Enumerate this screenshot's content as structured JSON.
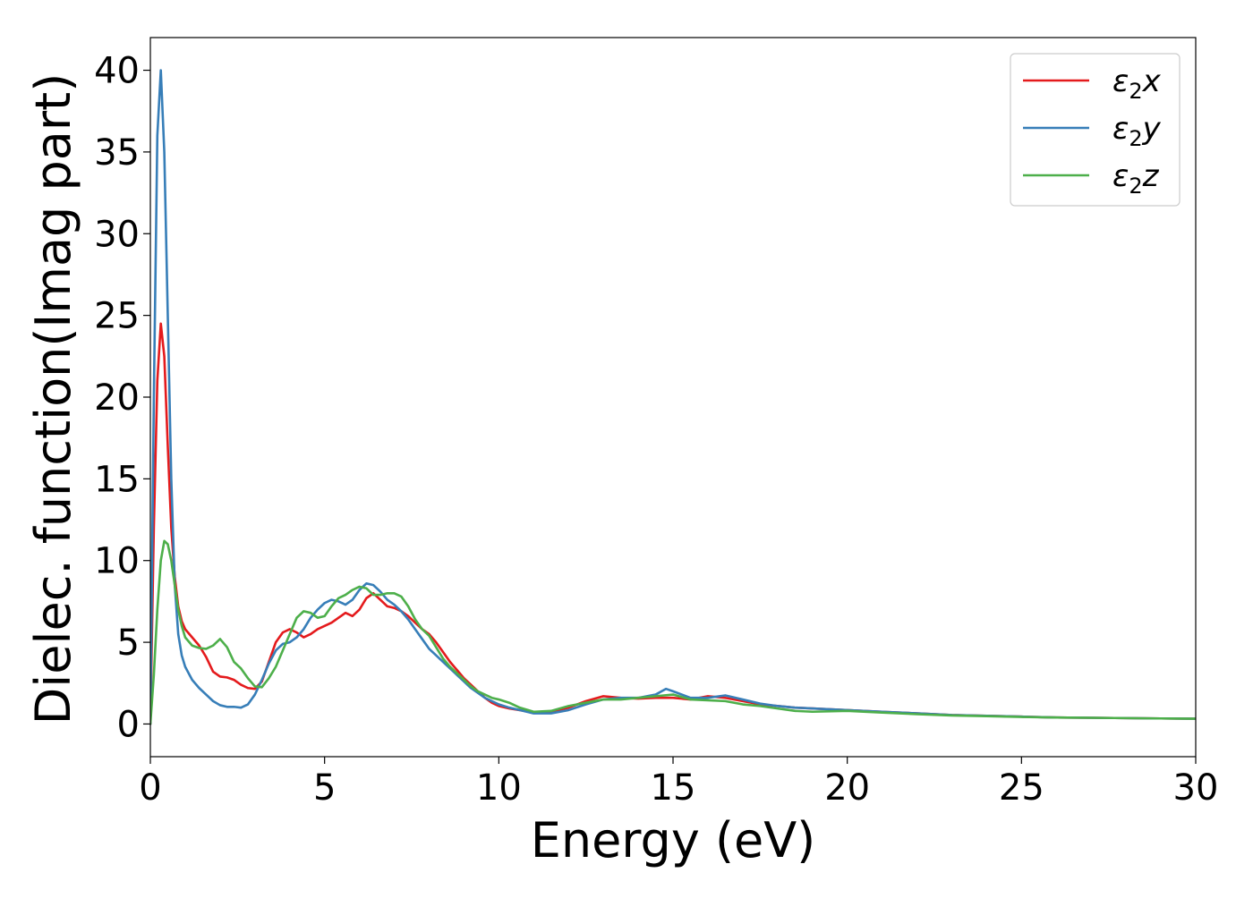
{
  "chart_data": {
    "type": "line",
    "title": "",
    "xlabel": "Energy (eV)",
    "ylabel": "Dielec. function(Imag part)",
    "xlim": [
      0,
      30
    ],
    "ylim": [
      -2,
      42
    ],
    "xticks": [
      0,
      5,
      10,
      15,
      20,
      25,
      30
    ],
    "yticks": [
      0,
      5,
      10,
      15,
      20,
      25,
      30,
      35,
      40
    ],
    "grid": false,
    "legend_position": "top-right",
    "series": [
      {
        "name": "ε2x",
        "legend_base": "ε",
        "legend_sub": "2",
        "legend_suffix": "x",
        "color": "#e41a1c",
        "points": [
          [
            0,
            0
          ],
          [
            0.1,
            12
          ],
          [
            0.2,
            21
          ],
          [
            0.3,
            24.5
          ],
          [
            0.4,
            22.5
          ],
          [
            0.5,
            17
          ],
          [
            0.6,
            12
          ],
          [
            0.7,
            9
          ],
          [
            0.8,
            7.2
          ],
          [
            0.9,
            6.3
          ],
          [
            1,
            5.8
          ],
          [
            1.2,
            5.3
          ],
          [
            1.4,
            4.8
          ],
          [
            1.6,
            4.1
          ],
          [
            1.8,
            3.2
          ],
          [
            2,
            2.9
          ],
          [
            2.2,
            2.85
          ],
          [
            2.4,
            2.7
          ],
          [
            2.6,
            2.4
          ],
          [
            2.8,
            2.2
          ],
          [
            3,
            2.15
          ],
          [
            3.2,
            2.6
          ],
          [
            3.4,
            3.8
          ],
          [
            3.6,
            5
          ],
          [
            3.8,
            5.6
          ],
          [
            4,
            5.8
          ],
          [
            4.2,
            5.6
          ],
          [
            4.4,
            5.3
          ],
          [
            4.6,
            5.5
          ],
          [
            4.8,
            5.8
          ],
          [
            5,
            6.0
          ],
          [
            5.2,
            6.2
          ],
          [
            5.4,
            6.5
          ],
          [
            5.6,
            6.8
          ],
          [
            5.8,
            6.6
          ],
          [
            6,
            7.0
          ],
          [
            6.2,
            7.7
          ],
          [
            6.4,
            8.0
          ],
          [
            6.6,
            7.6
          ],
          [
            6.8,
            7.2
          ],
          [
            7,
            7.1
          ],
          [
            7.2,
            6.9
          ],
          [
            7.4,
            6.6
          ],
          [
            7.6,
            6.2
          ],
          [
            7.8,
            5.8
          ],
          [
            8,
            5.5
          ],
          [
            8.2,
            5.0
          ],
          [
            8.4,
            4.4
          ],
          [
            8.6,
            3.8
          ],
          [
            8.8,
            3.3
          ],
          [
            9,
            2.8
          ],
          [
            9.2,
            2.4
          ],
          [
            9.4,
            2.0
          ],
          [
            9.6,
            1.6
          ],
          [
            9.8,
            1.3
          ],
          [
            10,
            1.1
          ],
          [
            10.3,
            0.95
          ],
          [
            10.6,
            0.85
          ],
          [
            11,
            0.7
          ],
          [
            11.5,
            0.75
          ],
          [
            12,
            1.0
          ],
          [
            12.5,
            1.4
          ],
          [
            13,
            1.7
          ],
          [
            13.5,
            1.6
          ],
          [
            14,
            1.55
          ],
          [
            14.5,
            1.6
          ],
          [
            15,
            1.6
          ],
          [
            15.5,
            1.5
          ],
          [
            16,
            1.7
          ],
          [
            16.5,
            1.6
          ],
          [
            17,
            1.4
          ],
          [
            17.5,
            1.2
          ],
          [
            18,
            1.1
          ],
          [
            18.5,
            1.0
          ],
          [
            19,
            0.95
          ],
          [
            20,
            0.85
          ],
          [
            21,
            0.75
          ],
          [
            22,
            0.65
          ],
          [
            23,
            0.55
          ],
          [
            24,
            0.5
          ],
          [
            25,
            0.45
          ],
          [
            26,
            0.4
          ],
          [
            27,
            0.38
          ],
          [
            28,
            0.36
          ],
          [
            29,
            0.34
          ],
          [
            30,
            0.32
          ]
        ]
      },
      {
        "name": "ε2y",
        "legend_base": "ε",
        "legend_sub": "2",
        "legend_suffix": "y",
        "color": "#377eb8",
        "points": [
          [
            0,
            0
          ],
          [
            0.1,
            20
          ],
          [
            0.2,
            36
          ],
          [
            0.3,
            40
          ],
          [
            0.4,
            35
          ],
          [
            0.5,
            25
          ],
          [
            0.6,
            15
          ],
          [
            0.7,
            8.5
          ],
          [
            0.8,
            5.5
          ],
          [
            0.9,
            4.2
          ],
          [
            1,
            3.5
          ],
          [
            1.2,
            2.7
          ],
          [
            1.4,
            2.2
          ],
          [
            1.6,
            1.8
          ],
          [
            1.8,
            1.4
          ],
          [
            2,
            1.15
          ],
          [
            2.2,
            1.05
          ],
          [
            2.4,
            1.05
          ],
          [
            2.6,
            1.0
          ],
          [
            2.8,
            1.2
          ],
          [
            3,
            1.8
          ],
          [
            3.2,
            2.7
          ],
          [
            3.4,
            3.7
          ],
          [
            3.6,
            4.5
          ],
          [
            3.8,
            4.9
          ],
          [
            4,
            5.0
          ],
          [
            4.2,
            5.3
          ],
          [
            4.4,
            5.8
          ],
          [
            4.6,
            6.5
          ],
          [
            4.8,
            7.0
          ],
          [
            5,
            7.4
          ],
          [
            5.2,
            7.6
          ],
          [
            5.4,
            7.5
          ],
          [
            5.6,
            7.3
          ],
          [
            5.8,
            7.6
          ],
          [
            6,
            8.2
          ],
          [
            6.2,
            8.6
          ],
          [
            6.4,
            8.5
          ],
          [
            6.6,
            8.1
          ],
          [
            6.8,
            7.6
          ],
          [
            7,
            7.3
          ],
          [
            7.2,
            6.9
          ],
          [
            7.4,
            6.4
          ],
          [
            7.6,
            5.8
          ],
          [
            7.8,
            5.2
          ],
          [
            8,
            4.6
          ],
          [
            8.2,
            4.2
          ],
          [
            8.4,
            3.8
          ],
          [
            8.6,
            3.4
          ],
          [
            8.8,
            3.0
          ],
          [
            9,
            2.6
          ],
          [
            9.2,
            2.2
          ],
          [
            9.4,
            1.9
          ],
          [
            9.6,
            1.6
          ],
          [
            9.8,
            1.4
          ],
          [
            10,
            1.2
          ],
          [
            10.3,
            1.0
          ],
          [
            10.6,
            0.85
          ],
          [
            11,
            0.65
          ],
          [
            11.5,
            0.65
          ],
          [
            12,
            0.85
          ],
          [
            12.5,
            1.2
          ],
          [
            13,
            1.5
          ],
          [
            13.5,
            1.6
          ],
          [
            14,
            1.6
          ],
          [
            14.5,
            1.8
          ],
          [
            14.8,
            2.15
          ],
          [
            15,
            2.0
          ],
          [
            15.5,
            1.6
          ],
          [
            16,
            1.6
          ],
          [
            16.5,
            1.75
          ],
          [
            17,
            1.5
          ],
          [
            17.5,
            1.25
          ],
          [
            18,
            1.1
          ],
          [
            18.5,
            1.0
          ],
          [
            19,
            0.95
          ],
          [
            20,
            0.85
          ],
          [
            21,
            0.75
          ],
          [
            22,
            0.65
          ],
          [
            23,
            0.55
          ],
          [
            24,
            0.5
          ],
          [
            25,
            0.45
          ],
          [
            26,
            0.4
          ],
          [
            27,
            0.38
          ],
          [
            28,
            0.36
          ],
          [
            29,
            0.34
          ],
          [
            30,
            0.32
          ]
        ]
      },
      {
        "name": "ε2z",
        "legend_base": "ε",
        "legend_sub": "2",
        "legend_suffix": "z",
        "color": "#4daf4a",
        "points": [
          [
            0,
            0
          ],
          [
            0.1,
            3
          ],
          [
            0.2,
            7
          ],
          [
            0.3,
            10
          ],
          [
            0.4,
            11.2
          ],
          [
            0.5,
            11.0
          ],
          [
            0.6,
            10
          ],
          [
            0.7,
            8.5
          ],
          [
            0.8,
            7
          ],
          [
            0.9,
            6
          ],
          [
            1,
            5.3
          ],
          [
            1.2,
            4.8
          ],
          [
            1.4,
            4.65
          ],
          [
            1.6,
            4.6
          ],
          [
            1.8,
            4.8
          ],
          [
            2,
            5.2
          ],
          [
            2.2,
            4.7
          ],
          [
            2.4,
            3.8
          ],
          [
            2.6,
            3.4
          ],
          [
            2.8,
            2.8
          ],
          [
            3,
            2.3
          ],
          [
            3.2,
            2.25
          ],
          [
            3.4,
            2.8
          ],
          [
            3.6,
            3.5
          ],
          [
            3.8,
            4.5
          ],
          [
            4,
            5.5
          ],
          [
            4.2,
            6.5
          ],
          [
            4.4,
            6.9
          ],
          [
            4.6,
            6.8
          ],
          [
            4.8,
            6.5
          ],
          [
            5,
            6.6
          ],
          [
            5.2,
            7.2
          ],
          [
            5.4,
            7.7
          ],
          [
            5.6,
            7.9
          ],
          [
            5.8,
            8.2
          ],
          [
            6,
            8.4
          ],
          [
            6.2,
            8.3
          ],
          [
            6.4,
            7.9
          ],
          [
            6.6,
            7.9
          ],
          [
            6.8,
            8.0
          ],
          [
            7,
            8.0
          ],
          [
            7.2,
            7.8
          ],
          [
            7.4,
            7.2
          ],
          [
            7.6,
            6.4
          ],
          [
            7.8,
            5.8
          ],
          [
            8,
            5.4
          ],
          [
            8.2,
            4.7
          ],
          [
            8.4,
            4.0
          ],
          [
            8.6,
            3.5
          ],
          [
            8.8,
            3.1
          ],
          [
            9,
            2.7
          ],
          [
            9.2,
            2.3
          ],
          [
            9.4,
            2.0
          ],
          [
            9.6,
            1.8
          ],
          [
            9.8,
            1.6
          ],
          [
            10,
            1.5
          ],
          [
            10.3,
            1.3
          ],
          [
            10.6,
            1.0
          ],
          [
            11,
            0.75
          ],
          [
            11.5,
            0.8
          ],
          [
            12,
            1.1
          ],
          [
            12.5,
            1.3
          ],
          [
            13,
            1.5
          ],
          [
            13.5,
            1.5
          ],
          [
            14,
            1.6
          ],
          [
            14.5,
            1.7
          ],
          [
            15,
            1.8
          ],
          [
            15.5,
            1.5
          ],
          [
            16,
            1.45
          ],
          [
            16.5,
            1.4
          ],
          [
            17,
            1.2
          ],
          [
            17.5,
            1.1
          ],
          [
            18,
            0.95
          ],
          [
            18.5,
            0.8
          ],
          [
            19,
            0.75
          ],
          [
            20,
            0.8
          ],
          [
            21,
            0.7
          ],
          [
            22,
            0.6
          ],
          [
            23,
            0.52
          ],
          [
            24,
            0.48
          ],
          [
            25,
            0.43
          ],
          [
            26,
            0.4
          ],
          [
            27,
            0.38
          ],
          [
            28,
            0.36
          ],
          [
            29,
            0.34
          ],
          [
            30,
            0.32
          ]
        ]
      }
    ]
  }
}
